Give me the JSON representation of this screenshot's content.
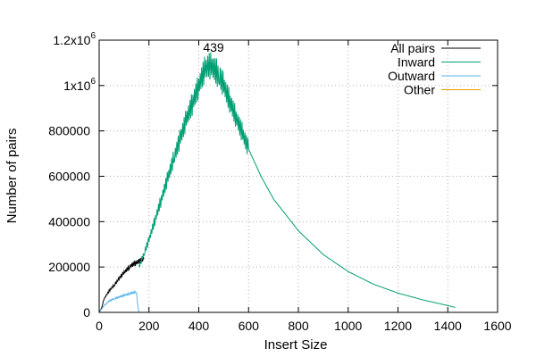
{
  "chart_data": {
    "type": "line",
    "title": "",
    "xlabel": "Insert Size",
    "ylabel": "Number of pairs",
    "xlim": [
      0,
      1600
    ],
    "ylim": [
      0,
      1200000
    ],
    "xticks": [
      "0",
      "200",
      "400",
      "600",
      "800",
      "1000",
      "1200",
      "1400",
      "1600"
    ],
    "yticks": [
      "0",
      "200000",
      "400000",
      "600000",
      "800000",
      "1x10",
      "1.2x10"
    ],
    "ytick_exponent": "6",
    "grid": true,
    "legend_position": "top-right",
    "annotations": [
      {
        "text": "439",
        "x": 439,
        "y": 1090000
      }
    ],
    "series": [
      {
        "name": "All pairs",
        "color": "#000000",
        "x": [
          0,
          10,
          20,
          40,
          60,
          80,
          100,
          120,
          140,
          160,
          180
        ],
        "y": [
          0,
          20000,
          60000,
          95000,
          120000,
          150000,
          175000,
          200000,
          215000,
          225000,
          235000
        ]
      },
      {
        "name": "Inward",
        "color": "#009e73",
        "x": [
          160,
          180,
          200,
          250,
          300,
          350,
          400,
          420,
          439,
          460,
          480,
          500,
          550,
          600,
          650,
          700,
          800,
          900,
          1000,
          1100,
          1200,
          1300,
          1400,
          1430
        ],
        "y": [
          200000,
          260000,
          320000,
          500000,
          680000,
          850000,
          1000000,
          1060000,
          1090000,
          1075000,
          1050000,
          1000000,
          860000,
          720000,
          600000,
          500000,
          360000,
          255000,
          180000,
          125000,
          85000,
          55000,
          30000,
          22000
        ]
      },
      {
        "name": "Outward",
        "color": "#56b4e9",
        "x": [
          0,
          10,
          20,
          40,
          60,
          80,
          100,
          120,
          140,
          150,
          155,
          160
        ],
        "y": [
          0,
          15000,
          30000,
          50000,
          60000,
          68000,
          75000,
          82000,
          88000,
          92000,
          30000,
          0
        ]
      },
      {
        "name": "Other",
        "color": "#e69f00",
        "x": [
          0,
          1430
        ],
        "y": [
          0,
          0
        ]
      }
    ]
  }
}
